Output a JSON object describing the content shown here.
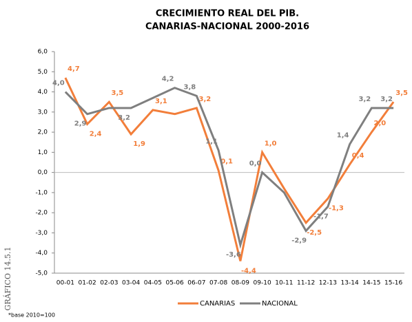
{
  "chart_data": {
    "type": "line",
    "title": "CRECIMIENTO REAL DEL PIB.",
    "subtitle": "CANARIAS-NACIONAL 2000-2016",
    "side_label": "GRÁFICO 14.5.1",
    "footnote": "*base 2010=100",
    "categories": [
      "00-01",
      "01-02",
      "02-03",
      "03-04",
      "04-05",
      "05-06",
      "06-07",
      "07-08",
      "08-09",
      "09-10",
      "10-11",
      "11-12",
      "12-13",
      "13-14",
      "14-15",
      "15-16"
    ],
    "series": [
      {
        "name": "CANARIAS",
        "color": "#f27e3a",
        "values": [
          4.7,
          2.4,
          3.5,
          1.9,
          3.1,
          2.9,
          3.2,
          0.1,
          -4.4,
          1.0,
          -0.8,
          -2.5,
          -1.3,
          0.4,
          2.0,
          3.5
        ],
        "value_labels": [
          "4,7",
          "2,4",
          "3,5",
          "1,9",
          "3,1",
          null,
          "3,2",
          "0,1",
          "-4,4",
          "1,0",
          null,
          "-2,5",
          "-1,3",
          "0,4",
          "2,0",
          "3,5"
        ]
      },
      {
        "name": "NACIONAL",
        "color": "#7f7f7f",
        "values": [
          4.0,
          2.9,
          3.2,
          3.2,
          3.7,
          4.2,
          3.8,
          1.1,
          -3.6,
          0.0,
          -1.0,
          -2.9,
          -1.7,
          1.4,
          3.2,
          3.2
        ],
        "value_labels": [
          "4,0",
          "2,9",
          null,
          "3,2",
          null,
          "4,2",
          "3,8",
          "1,1",
          "-3,6",
          "0,0",
          null,
          "-2,9",
          "-1,7",
          "1,4",
          "3,2",
          "3,2"
        ]
      }
    ],
    "ylim": [
      -5,
      6
    ],
    "yticks": [
      {
        "value": -5,
        "label": "-5,0"
      },
      {
        "value": -4,
        "label": "-4,0"
      },
      {
        "value": -3,
        "label": "-3,0"
      },
      {
        "value": -2,
        "label": "-2,0"
      },
      {
        "value": -1,
        "label": "-1,0"
      },
      {
        "value": 0,
        "label": "0,0"
      },
      {
        "value": 1,
        "label": "1,0"
      },
      {
        "value": 2,
        "label": "2,0"
      },
      {
        "value": 3,
        "label": "3,0"
      },
      {
        "value": 4,
        "label": "4,0"
      },
      {
        "value": 5,
        "label": "5,0"
      },
      {
        "value": 6,
        "label": "6,0"
      }
    ],
    "legend": "bottom"
  }
}
